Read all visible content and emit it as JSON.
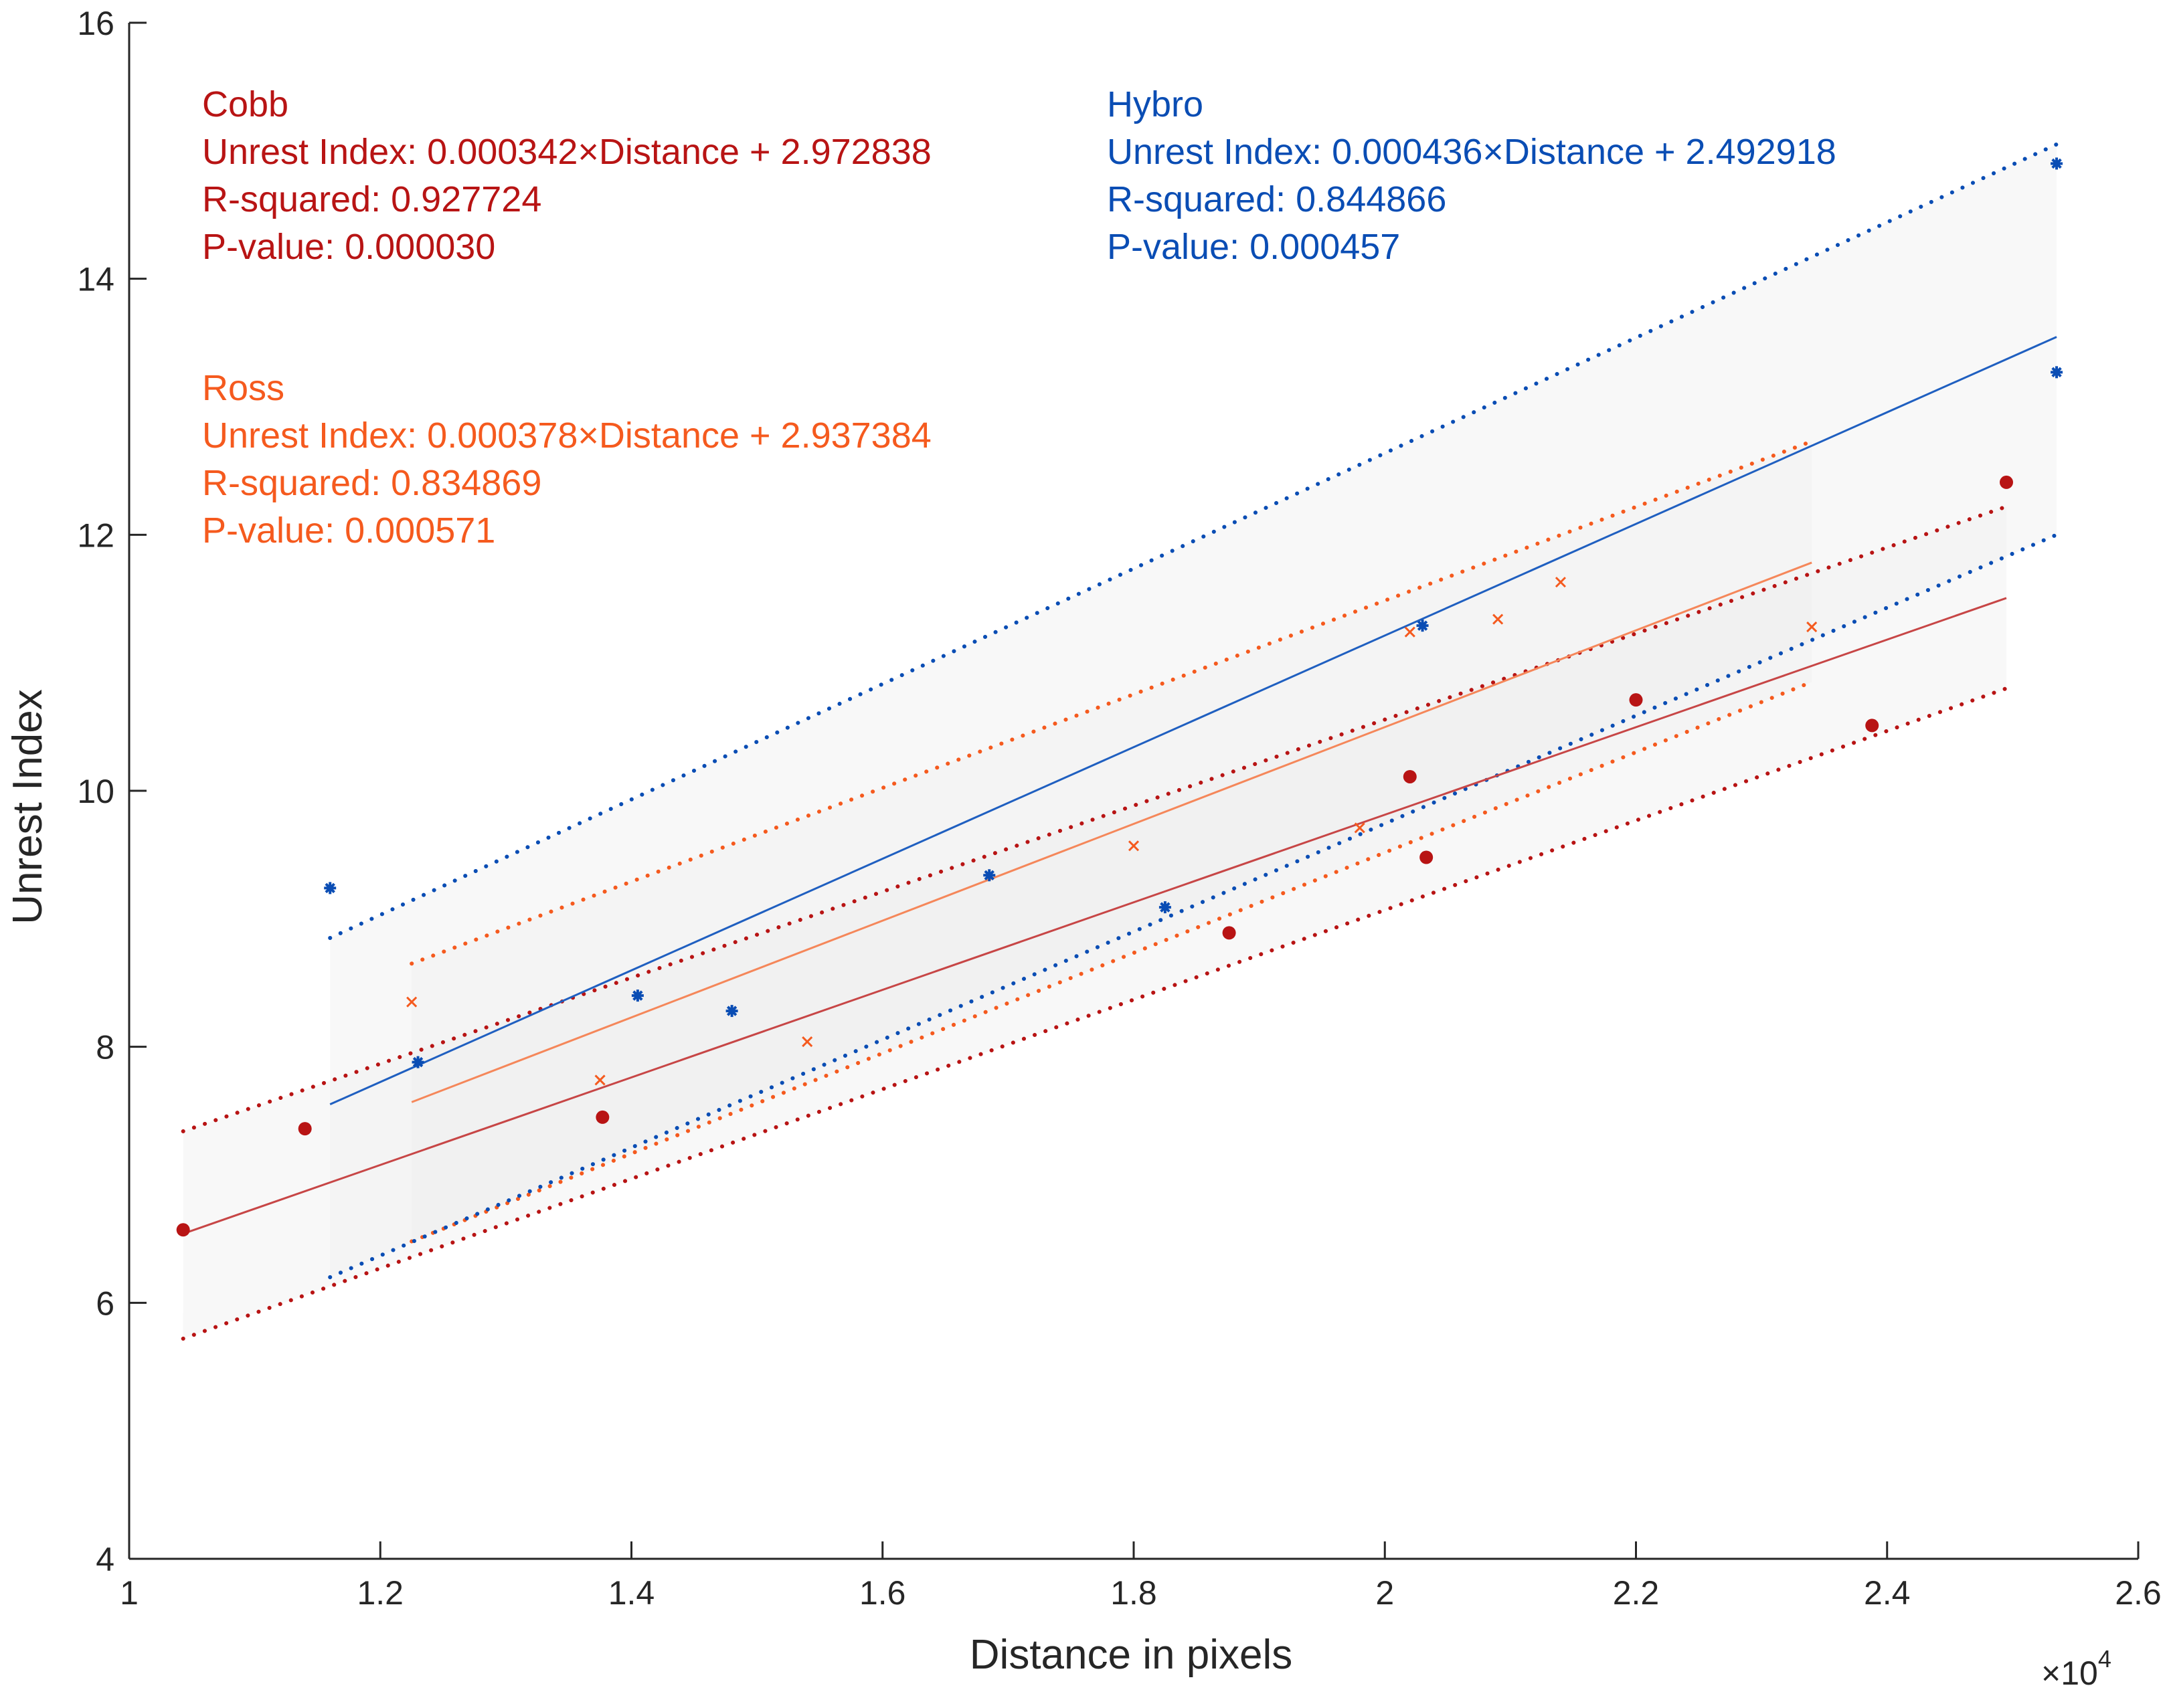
{
  "chart_data": {
    "type": "scatter",
    "title": "",
    "xlabel": "Distance in pixels",
    "ylabel": "Unrest Index",
    "x_multiplier": "×10",
    "x_exponent": "4",
    "xlim": [
      10000,
      26000
    ],
    "ylim": [
      4,
      16
    ],
    "xticks": [
      10000,
      12000,
      14000,
      16000,
      18000,
      20000,
      22000,
      24000,
      26000
    ],
    "xtick_labels": [
      "1",
      "1.2",
      "1.4",
      "1.6",
      "1.8",
      "2",
      "2.2",
      "2.4",
      "2.6"
    ],
    "yticks": [
      4,
      6,
      8,
      10,
      12,
      14,
      16
    ],
    "ytick_labels": [
      "4",
      "6",
      "8",
      "10",
      "12",
      "14",
      "16"
    ],
    "grid": false,
    "series": [
      {
        "name": "Cobb",
        "color": "#b81414",
        "marker": "circle",
        "slope": 0.000342,
        "intercept": 2.972838,
        "x_range": [
          10430,
          24950
        ],
        "ci_lower": [
          [
            10430,
            5.72
          ],
          [
            24950,
            10.8
          ]
        ],
        "ci_upper": [
          [
            10430,
            7.34
          ],
          [
            24950,
            12.22
          ]
        ],
        "points": [
          {
            "x": 10430,
            "y": 6.57
          },
          {
            "x": 11400,
            "y": 7.36
          },
          {
            "x": 13770,
            "y": 7.45
          },
          {
            "x": 18760,
            "y": 8.89
          },
          {
            "x": 20200,
            "y": 10.11
          },
          {
            "x": 20330,
            "y": 9.48
          },
          {
            "x": 22000,
            "y": 10.71
          },
          {
            "x": 23880,
            "y": 10.51
          },
          {
            "x": 24950,
            "y": 12.41
          }
        ],
        "annotation": {
          "name": "Cobb",
          "equation": "Unrest Index: 0.000342×Distance + 2.972838",
          "r_squared": "R-squared: 0.927724",
          "p_value": "P-value: 0.000030"
        }
      },
      {
        "name": "Ross",
        "color": "#f55a1e",
        "marker": "x",
        "slope": 0.000378,
        "intercept": 2.937384,
        "x_range": [
          12250,
          23400
        ],
        "ci_lower": [
          [
            12250,
            6.48
          ],
          [
            23400,
            10.85
          ]
        ],
        "ci_upper": [
          [
            12250,
            8.65
          ],
          [
            23400,
            12.73
          ]
        ],
        "points": [
          {
            "x": 12250,
            "y": 8.35
          },
          {
            "x": 13750,
            "y": 7.74
          },
          {
            "x": 15400,
            "y": 8.04
          },
          {
            "x": 18000,
            "y": 9.57
          },
          {
            "x": 19800,
            "y": 9.71
          },
          {
            "x": 20200,
            "y": 11.24
          },
          {
            "x": 20900,
            "y": 11.34
          },
          {
            "x": 21400,
            "y": 11.63
          },
          {
            "x": 23400,
            "y": 11.28
          }
        ],
        "annotation": {
          "name": "Ross",
          "equation": "Unrest Index: 0.000378×Distance + 2.937384",
          "r_squared": "R-squared: 0.834869",
          "p_value": "P-value: 0.000571"
        }
      },
      {
        "name": "Hybro",
        "color": "#0a4db4",
        "marker": "asterisk",
        "slope": 0.000436,
        "intercept": 2.492918,
        "x_range": [
          11600,
          25350
        ],
        "ci_lower": [
          [
            11600,
            6.2
          ],
          [
            25350,
            12.0
          ]
        ],
        "ci_upper": [
          [
            11600,
            8.85
          ],
          [
            25350,
            15.05
          ]
        ],
        "points": [
          {
            "x": 11600,
            "y": 9.24
          },
          {
            "x": 12300,
            "y": 7.88
          },
          {
            "x": 14050,
            "y": 8.4
          },
          {
            "x": 14800,
            "y": 8.28
          },
          {
            "x": 16850,
            "y": 9.34
          },
          {
            "x": 18250,
            "y": 9.09
          },
          {
            "x": 20300,
            "y": 11.29
          },
          {
            "x": 25350,
            "y": 13.27
          },
          {
            "x": 25350,
            "y": 14.9
          }
        ],
        "annotation": {
          "name": "Hybro",
          "equation": "Unrest Index: 0.000436×Distance + 2.492918",
          "r_squared": "R-squared: 0.844866",
          "p_value": "P-value: 0.000457"
        }
      }
    ]
  }
}
